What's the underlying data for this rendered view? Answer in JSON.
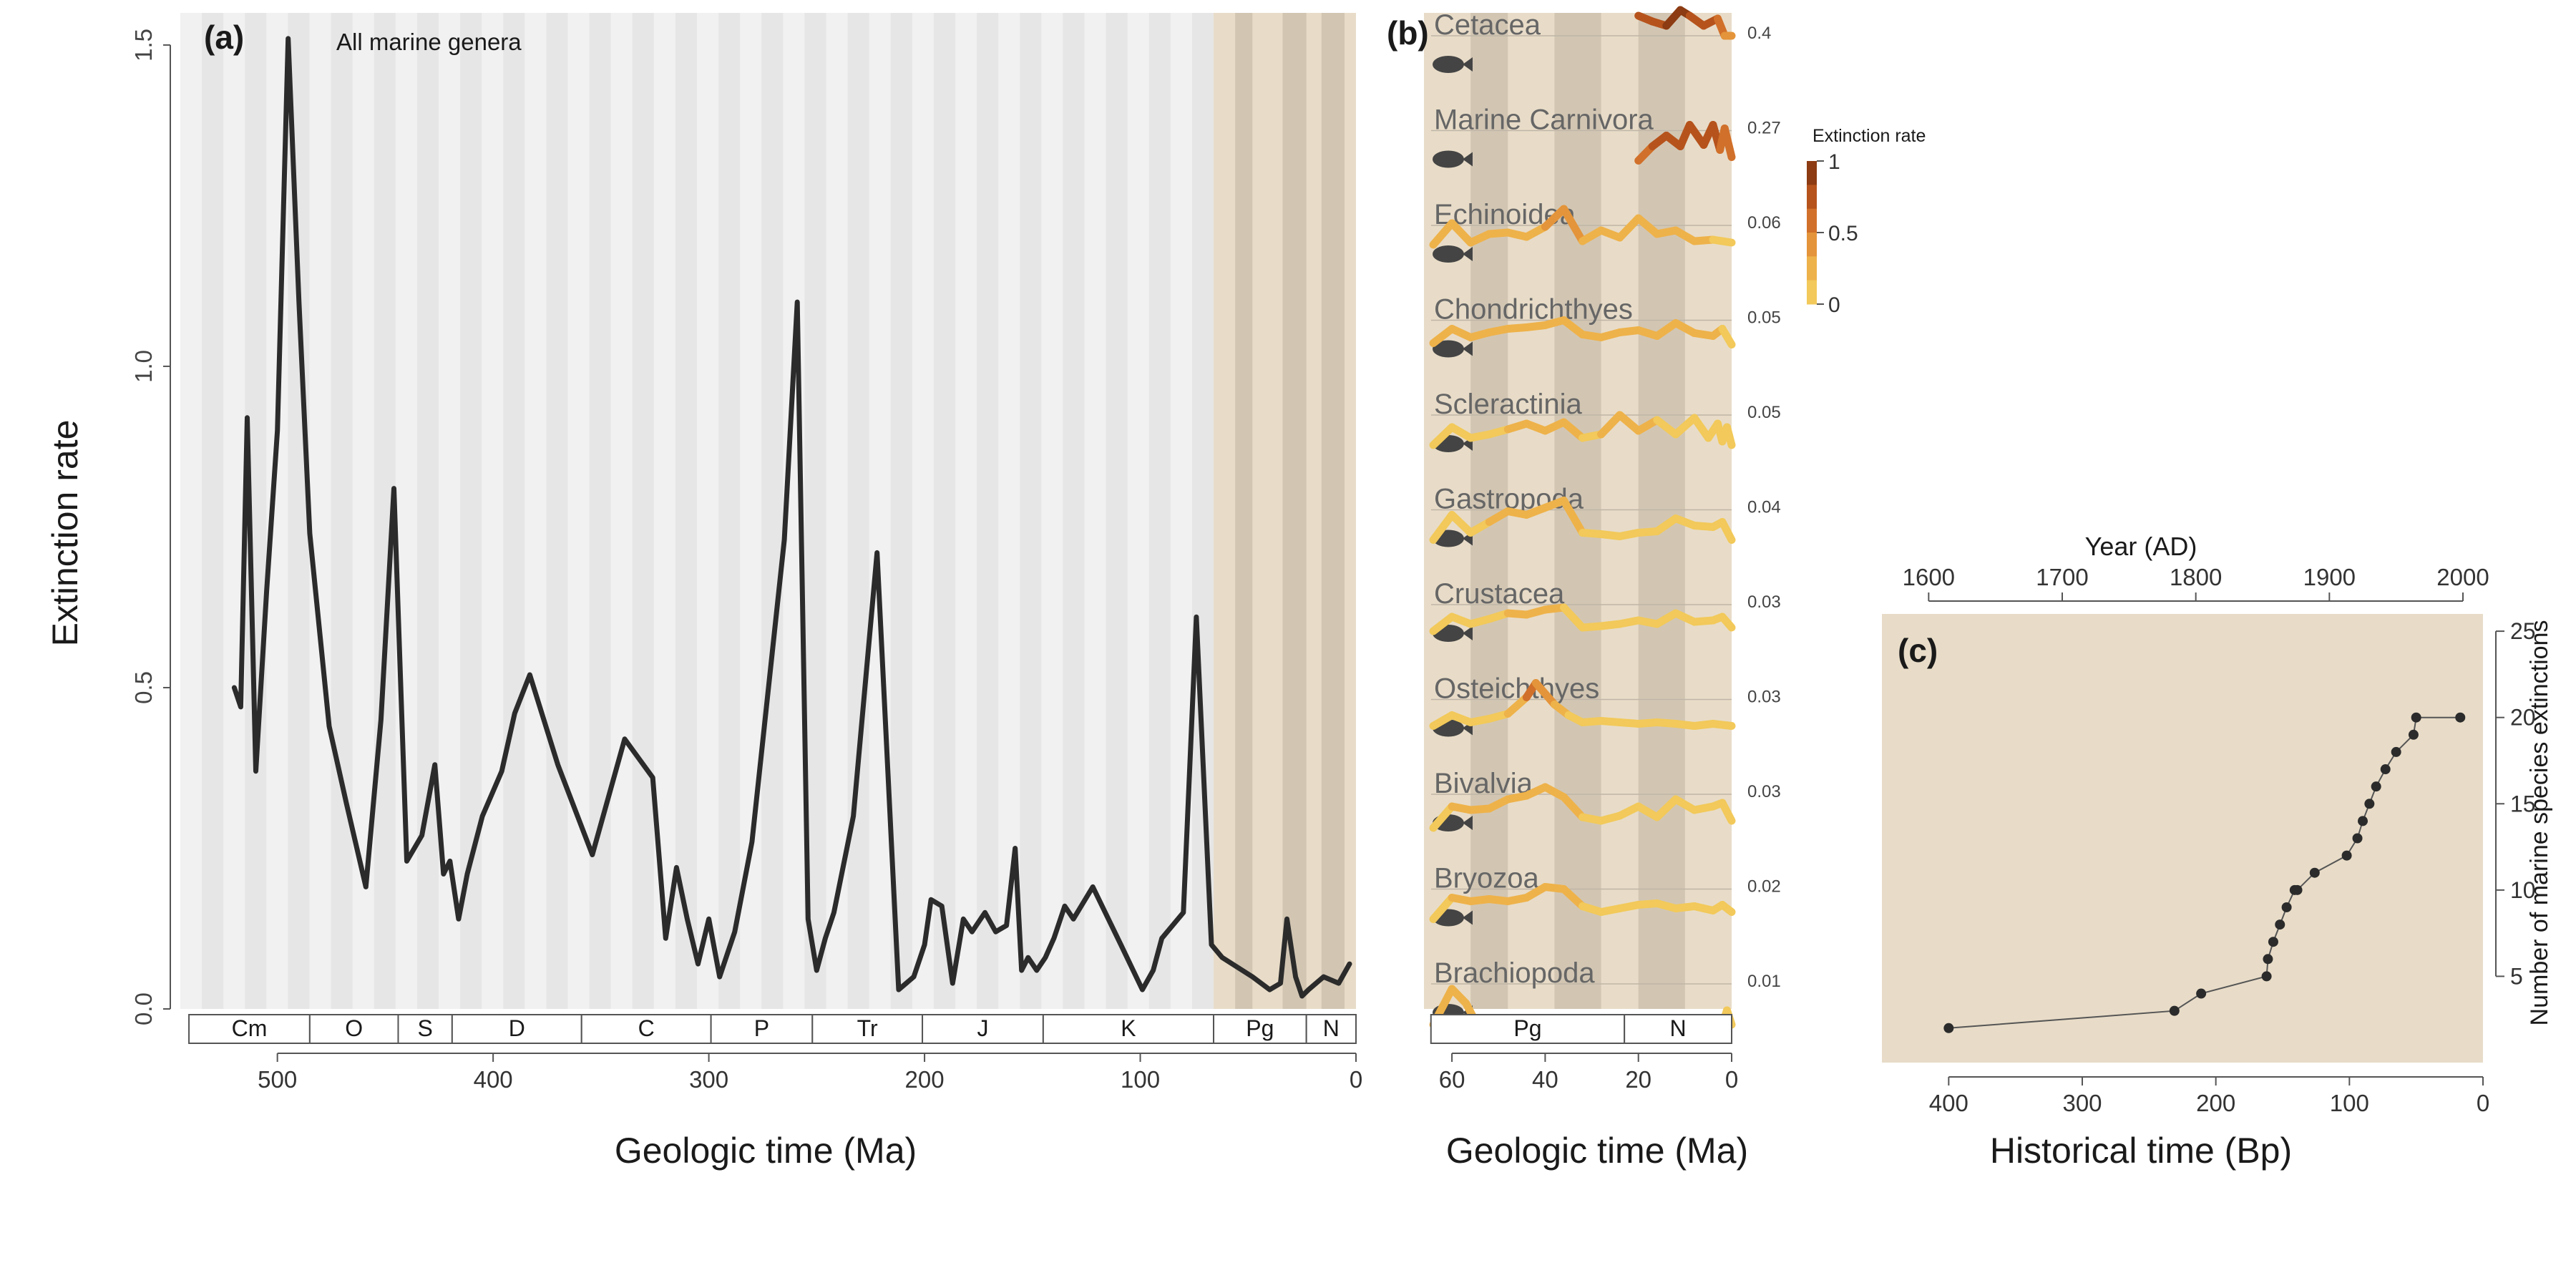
{
  "colors": {
    "bg_white": "#ffffff",
    "stripe_light": "#f1f1f1",
    "stripe_dark": "#e6e6e6",
    "cenozoic_tan": "#e8dcc8",
    "cenozoic_tan_dark": "#d2c6b3",
    "line_dark": "#2b2b2b",
    "axis": "#555555",
    "text": "#1a1a1a",
    "taxon_label": "#666666",
    "rate_scale": [
      "#f2c95a",
      "#eeb24a",
      "#e4943a",
      "#d1702a",
      "#b6531c",
      "#8c3b12"
    ]
  },
  "chart_data": [
    {
      "type": "line",
      "panel": "(a)",
      "title": "All marine genera",
      "xlabel": "Geologic time (Ma)",
      "ylabel": "Extinction rate",
      "xlim": [
        545,
        0
      ],
      "ylim": [
        0,
        1.55
      ],
      "xticks": [
        500,
        400,
        300,
        200,
        100,
        0
      ],
      "yticks": [
        0.0,
        0.5,
        1.0,
        1.5
      ],
      "ytick_labels": [
        "0.0",
        "0.5",
        "1.0",
        "1.5"
      ],
      "periods": [
        {
          "label": "Cm",
          "start": 541,
          "end": 485
        },
        {
          "label": "O",
          "start": 485,
          "end": 444
        },
        {
          "label": "S",
          "start": 444,
          "end": 419
        },
        {
          "label": "D",
          "start": 419,
          "end": 359
        },
        {
          "label": "C",
          "start": 359,
          "end": 299
        },
        {
          "label": "P",
          "start": 299,
          "end": 252
        },
        {
          "label": "Tr",
          "start": 252,
          "end": 201
        },
        {
          "label": "J",
          "start": 201,
          "end": 145
        },
        {
          "label": "K",
          "start": 145,
          "end": 66
        },
        {
          "label": "Pg",
          "start": 66,
          "end": 23
        },
        {
          "label": "N",
          "start": 23,
          "end": 0
        }
      ],
      "series": [
        {
          "name": "All marine genera",
          "x": [
            520,
            517,
            514,
            510,
            505,
            500,
            495,
            490,
            485,
            476,
            468,
            459,
            452,
            446,
            440,
            433,
            427,
            423,
            420,
            416,
            412,
            405,
            396,
            390,
            383,
            370,
            354,
            339,
            326,
            320,
            315,
            310,
            305,
            300,
            295,
            288,
            280,
            265,
            259,
            254,
            250,
            246,
            242,
            233,
            222,
            212,
            205,
            200,
            197,
            192,
            187,
            182,
            178,
            172,
            167,
            162,
            158,
            155,
            152,
            148,
            144,
            140,
            135,
            131,
            122,
            109,
            99,
            94,
            90,
            80,
            74,
            67,
            62,
            48,
            40,
            35,
            32,
            28,
            25,
            22,
            15,
            8,
            3
          ],
          "values": [
            0.5,
            0.47,
            0.92,
            0.37,
            0.65,
            0.9,
            1.51,
            1.1,
            0.74,
            0.44,
            0.32,
            0.19,
            0.45,
            0.81,
            0.23,
            0.27,
            0.38,
            0.21,
            0.23,
            0.14,
            0.21,
            0.3,
            0.37,
            0.46,
            0.52,
            0.38,
            0.24,
            0.42,
            0.36,
            0.11,
            0.22,
            0.14,
            0.07,
            0.14,
            0.05,
            0.12,
            0.26,
            0.73,
            1.1,
            0.14,
            0.06,
            0.11,
            0.15,
            0.3,
            0.71,
            0.03,
            0.05,
            0.1,
            0.17,
            0.16,
            0.04,
            0.14,
            0.12,
            0.15,
            0.12,
            0.13,
            0.25,
            0.06,
            0.08,
            0.06,
            0.08,
            0.11,
            0.16,
            0.14,
            0.19,
            0.1,
            0.03,
            0.06,
            0.11,
            0.15,
            0.61,
            0.1,
            0.08,
            0.05,
            0.03,
            0.04,
            0.14,
            0.05,
            0.02,
            0.03,
            0.05,
            0.04,
            0.07
          ]
        }
      ]
    },
    {
      "type": "line",
      "panel": "(b)",
      "xlabel": "Geologic time (Ma)",
      "xlim": [
        66,
        0
      ],
      "xticks": [
        60,
        40,
        20,
        0
      ],
      "periods": [
        {
          "label": "Pg",
          "start": 66,
          "end": 23
        },
        {
          "label": "N",
          "start": 23,
          "end": 0
        }
      ],
      "colorbar": {
        "title": "Extinction rate",
        "ticks": [
          1,
          0.5,
          0
        ],
        "tick_labels": [
          "1",
          "0.5",
          "0"
        ]
      },
      "series": [
        {
          "name": "Cetacea",
          "max_label": "0.4",
          "icon": "dolphin-icon",
          "x": [
            56,
            52,
            48,
            44,
            40,
            36,
            34,
            30,
            27,
            24,
            20,
            17,
            14,
            11,
            9,
            6,
            3,
            1.5,
            0
          ],
          "values": [
            null,
            null,
            null,
            null,
            null,
            null,
            null,
            null,
            null,
            null,
            0.9,
            0.82,
            0.76,
            0.98,
            0.9,
            0.76,
            0.86,
            0.62,
            0.62
          ],
          "rates": [
            0,
            0,
            0,
            0,
            0,
            0,
            0,
            0,
            0,
            0,
            0.9,
            0.85,
            0.8,
            1,
            0.9,
            0.8,
            0.85,
            0.5,
            0.3
          ]
        },
        {
          "name": "Marine Carnivora",
          "max_label": "0.27",
          "icon": "walrus-icon",
          "x": [
            20,
            17,
            14,
            11,
            9,
            6,
            4,
            2.5,
            1.5,
            0
          ],
          "values": [
            0.2,
            0.4,
            0.55,
            0.4,
            0.7,
            0.42,
            0.7,
            0.35,
            0.65,
            0.25
          ],
          "rates": [
            0.6,
            0.7,
            0.8,
            0.7,
            0.9,
            0.6,
            0.9,
            0.5,
            0.8,
            0.4
          ]
        },
        {
          "name": "Echinoidea",
          "max_label": "0.06",
          "icon": "urchin-icon",
          "x": [
            64,
            60,
            56,
            52,
            48,
            44,
            40,
            36,
            32,
            28,
            24,
            20,
            16,
            12,
            8,
            4,
            0
          ],
          "values": [
            0.35,
            0.65,
            0.38,
            0.5,
            0.52,
            0.46,
            0.6,
            0.85,
            0.4,
            0.55,
            0.45,
            0.72,
            0.5,
            0.55,
            0.4,
            0.42,
            0.38
          ],
          "rates": [
            0.1,
            0.3,
            0.1,
            0.1,
            0.15,
            0.15,
            0.2,
            0.5,
            0.1,
            0.1,
            0.1,
            0.15,
            0.1,
            0.1,
            0.1,
            0.1,
            0.05
          ]
        },
        {
          "name": "Chondrichthyes",
          "max_label": "0.05",
          "icon": "shark-icon",
          "x": [
            64,
            60,
            56,
            52,
            48,
            44,
            40,
            36,
            32,
            28,
            24,
            20,
            16,
            12,
            8,
            4,
            2,
            0
          ],
          "values": [
            0.3,
            0.5,
            0.38,
            0.45,
            0.5,
            0.52,
            0.55,
            0.62,
            0.42,
            0.38,
            0.45,
            0.48,
            0.4,
            0.58,
            0.44,
            0.4,
            0.5,
            0.28
          ],
          "rates": [
            0.1,
            0.15,
            0.1,
            0.1,
            0.1,
            0.15,
            0.15,
            0.2,
            0.1,
            0.1,
            0.1,
            0.1,
            0.1,
            0.15,
            0.1,
            0.1,
            0.1,
            0.05
          ]
        },
        {
          "name": "Scleractinia",
          "max_label": "0.05",
          "icon": "coral-icon",
          "x": [
            64,
            60,
            56,
            52,
            48,
            44,
            40,
            36,
            32,
            28,
            24,
            20,
            16,
            12,
            8,
            5,
            3,
            2,
            1,
            0
          ],
          "values": [
            0.2,
            0.45,
            0.3,
            0.35,
            0.42,
            0.5,
            0.4,
            0.52,
            0.3,
            0.35,
            0.62,
            0.4,
            0.55,
            0.35,
            0.58,
            0.3,
            0.5,
            0.25,
            0.45,
            0.2
          ],
          "rates": [
            0.05,
            0.1,
            0.05,
            0.05,
            0.1,
            0.1,
            0.1,
            0.15,
            0.05,
            0.05,
            0.15,
            0.1,
            0.1,
            0.05,
            0.1,
            0.05,
            0.1,
            0.05,
            0.1,
            0.05
          ]
        },
        {
          "name": "Gastropoda",
          "max_label": "0.04",
          "icon": "nautilus-icon",
          "x": [
            64,
            60,
            56,
            52,
            48,
            44,
            40,
            36,
            32,
            28,
            24,
            20,
            16,
            12,
            8,
            4,
            2,
            0
          ],
          "values": [
            0.2,
            0.55,
            0.3,
            0.45,
            0.6,
            0.55,
            0.65,
            0.75,
            0.3,
            0.28,
            0.25,
            0.3,
            0.32,
            0.5,
            0.4,
            0.38,
            0.45,
            0.2
          ],
          "rates": [
            0.05,
            0.1,
            0.05,
            0.1,
            0.1,
            0.1,
            0.15,
            0.15,
            0.05,
            0.05,
            0.05,
            0.05,
            0.05,
            0.1,
            0.05,
            0.05,
            0.05,
            0.05
          ]
        },
        {
          "name": "Crustacea",
          "max_label": "0.03",
          "icon": "crab-icon",
          "x": [
            64,
            60,
            56,
            52,
            48,
            44,
            40,
            36,
            32,
            28,
            24,
            20,
            16,
            12,
            8,
            4,
            2,
            0
          ],
          "values": [
            0.25,
            0.45,
            0.35,
            0.42,
            0.5,
            0.48,
            0.55,
            0.58,
            0.3,
            0.32,
            0.35,
            0.4,
            0.35,
            0.5,
            0.38,
            0.4,
            0.45,
            0.3
          ],
          "rates": [
            0.05,
            0.1,
            0.05,
            0.05,
            0.1,
            0.1,
            0.1,
            0.1,
            0.05,
            0.05,
            0.05,
            0.05,
            0.05,
            0.1,
            0.05,
            0.05,
            0.05,
            0.05
          ]
        },
        {
          "name": "Osteichthyes",
          "max_label": "0.03",
          "icon": "fish-icon",
          "x": [
            64,
            60,
            56,
            52,
            48,
            44,
            42,
            38,
            35,
            32,
            28,
            24,
            20,
            16,
            12,
            8,
            4,
            0
          ],
          "values": [
            0.25,
            0.4,
            0.3,
            0.35,
            0.42,
            0.65,
            0.85,
            0.55,
            0.4,
            0.3,
            0.32,
            0.3,
            0.28,
            0.3,
            0.28,
            0.25,
            0.28,
            0.25
          ],
          "rates": [
            0.05,
            0.1,
            0.05,
            0.05,
            0.1,
            0.4,
            0.6,
            0.3,
            0.1,
            0.05,
            0.05,
            0.05,
            0.05,
            0.05,
            0.05,
            0.05,
            0.05,
            0.05
          ]
        },
        {
          "name": "Bivalvia",
          "max_label": "0.03",
          "icon": "clam-icon",
          "x": [
            64,
            60,
            56,
            52,
            48,
            44,
            40,
            36,
            32,
            28,
            24,
            20,
            16,
            12,
            8,
            4,
            2,
            0
          ],
          "values": [
            0.15,
            0.45,
            0.4,
            0.42,
            0.55,
            0.6,
            0.72,
            0.58,
            0.3,
            0.25,
            0.32,
            0.45,
            0.3,
            0.55,
            0.4,
            0.45,
            0.5,
            0.25
          ],
          "rates": [
            0.05,
            0.1,
            0.1,
            0.1,
            0.1,
            0.15,
            0.2,
            0.15,
            0.05,
            0.05,
            0.05,
            0.1,
            0.05,
            0.1,
            0.05,
            0.05,
            0.1,
            0.05
          ]
        },
        {
          "name": "Bryozoa",
          "max_label": "0.02",
          "icon": "bryozoan-icon",
          "x": [
            64,
            60,
            56,
            52,
            48,
            44,
            40,
            36,
            32,
            28,
            24,
            20,
            16,
            12,
            8,
            4,
            2,
            0
          ],
          "values": [
            0.2,
            0.5,
            0.45,
            0.48,
            0.45,
            0.5,
            0.65,
            0.62,
            0.38,
            0.3,
            0.35,
            0.4,
            0.42,
            0.35,
            0.38,
            0.32,
            0.4,
            0.3
          ],
          "rates": [
            0.05,
            0.1,
            0.1,
            0.1,
            0.1,
            0.1,
            0.15,
            0.15,
            0.05,
            0.05,
            0.05,
            0.05,
            0.05,
            0.05,
            0.05,
            0.05,
            0.05,
            0.05
          ]
        },
        {
          "name": "Brachiopoda",
          "max_label": "0.01",
          "icon": "brachiopod-icon",
          "x": [
            64,
            62,
            60,
            57,
            55,
            52,
            48,
            44,
            40,
            36,
            32,
            28,
            24,
            20,
            16,
            12,
            8,
            4,
            2,
            1,
            0
          ],
          "values": [
            0.05,
            0.3,
            0.55,
            0.35,
            0.1,
            0.05,
            0.08,
            0.05,
            0.05,
            0.05,
            0.05,
            0.05,
            0.05,
            0.05,
            0.05,
            0.05,
            0.05,
            0.05,
            0.05,
            0.25,
            0.05
          ],
          "rates": [
            0.05,
            0.2,
            0.3,
            0.2,
            0.05,
            0.05,
            0.05,
            0.05,
            0.05,
            0.05,
            0.05,
            0.05,
            0.05,
            0.05,
            0.05,
            0.05,
            0.05,
            0.05,
            0.05,
            0.1,
            0.05
          ]
        }
      ]
    },
    {
      "type": "scatter",
      "panel": "(c)",
      "xlabel": "Historical time (Bp)",
      "x2label": "Year (AD)",
      "ylabel": "Number of marine species extinctions",
      "xlim": [
        450,
        0
      ],
      "ylim": [
        0,
        26
      ],
      "xticks": [
        400,
        300,
        200,
        100,
        0
      ],
      "x2ticks": [
        1600,
        1700,
        1800,
        1900,
        2000
      ],
      "yticks": [
        5,
        10,
        15,
        20,
        25
      ],
      "series": [
        {
          "name": "marine species extinctions",
          "x": [
            400,
            231,
            211,
            162,
            161,
            157,
            152,
            147,
            141,
            139,
            126,
            102,
            94,
            90,
            85,
            80,
            73,
            65,
            52,
            50,
            17
          ],
          "values": [
            2,
            3,
            4,
            5,
            6,
            7,
            8,
            9,
            10,
            10,
            11,
            12,
            13,
            14,
            15,
            16,
            17,
            18,
            19,
            20,
            20
          ]
        }
      ]
    }
  ]
}
